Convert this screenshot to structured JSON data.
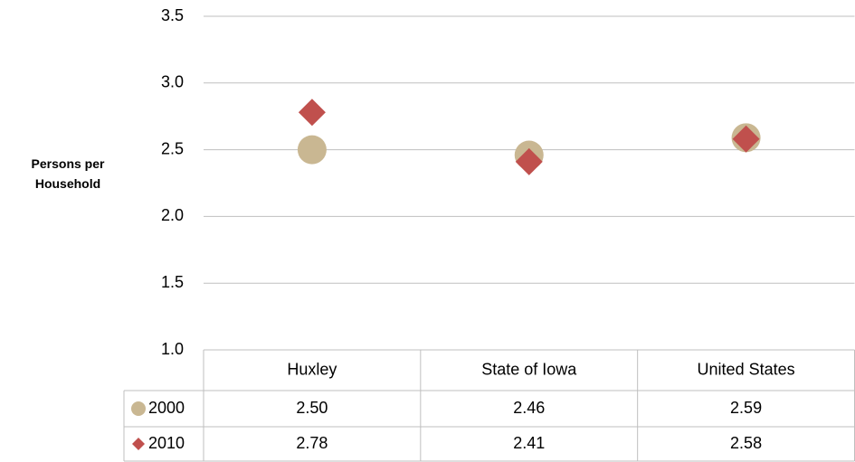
{
  "chart_data": {
    "type": "scatter",
    "y_label": "Persons per Household",
    "categories": [
      "Huxley",
      "State of Iowa",
      "United States"
    ],
    "series": [
      {
        "name": "2000",
        "color": "#c9b792",
        "marker": "circle",
        "values": [
          2.5,
          2.46,
          2.59
        ],
        "value_labels": [
          "2.50",
          "2.46",
          "2.59"
        ]
      },
      {
        "name": "2010",
        "color": "#c0504d",
        "marker": "diamond",
        "values": [
          2.78,
          2.41,
          2.58
        ],
        "value_labels": [
          "2.78",
          "2.41",
          "2.58"
        ]
      }
    ],
    "ylim": [
      1.0,
      3.5
    ],
    "yticks": [
      {
        "value": 1.0,
        "label": "1.0"
      },
      {
        "value": 1.5,
        "label": "1.5"
      },
      {
        "value": 2.0,
        "label": "2.0"
      },
      {
        "value": 2.5,
        "label": "2.5"
      },
      {
        "value": 3.0,
        "label": "3.0"
      },
      {
        "value": 3.5,
        "label": "3.5"
      }
    ],
    "grid": true
  }
}
